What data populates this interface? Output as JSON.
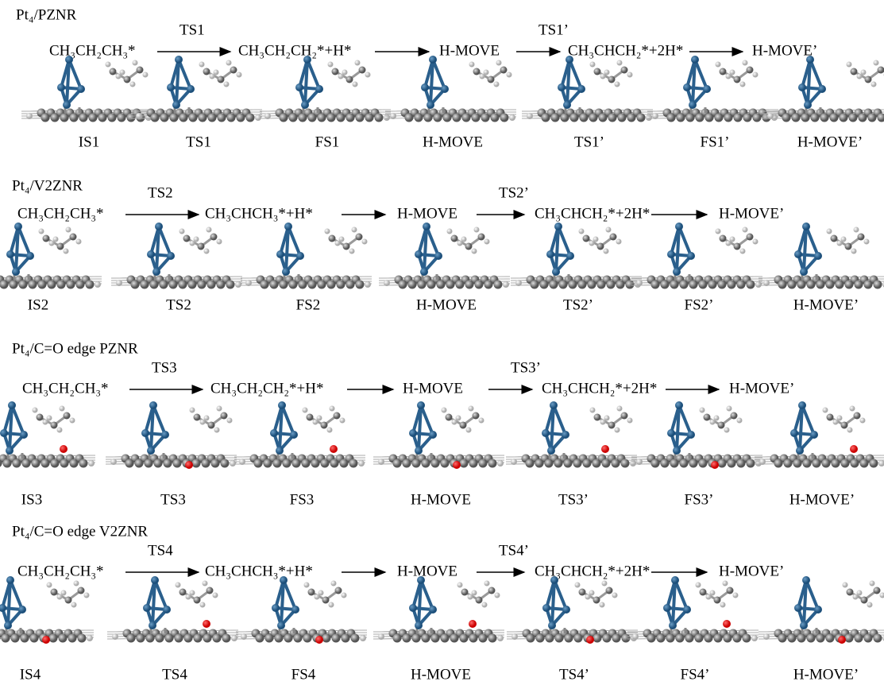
{
  "sections": [
    {
      "label": "Pt₄/PZNR",
      "scheme": [
        "CH₃CH₂CH₃*",
        "CH₃CH₂CH₂*+H*",
        "H-MOVE",
        "CH₃CHCH₂*+2H*",
        "H-MOVE’"
      ],
      "arrows": [
        "TS1",
        null,
        "TS1’",
        null
      ],
      "structures": [
        "IS1",
        "TS1",
        "FS1",
        "H-MOVE",
        "TS1’",
        "FS1’",
        "H-MOVE’"
      ]
    },
    {
      "label": "Pt₄/V2ZNR",
      "scheme": [
        "CH₃CH₂CH₃*",
        "CH₃CHCH₃*+H*",
        "H-MOVE",
        "CH₃CHCH₂*+2H*",
        "H-MOVE’"
      ],
      "arrows": [
        "TS2",
        null,
        "TS2’",
        null
      ],
      "structures": [
        "IS2",
        "TS2",
        "FS2",
        "H-MOVE",
        "TS2’",
        "FS2’",
        "H-MOVE’"
      ]
    },
    {
      "label": "Pt₄/C=O edge PZNR",
      "scheme": [
        "CH₃CH₂CH₃*",
        "CH₃CH₂CH₂*+H*",
        "H-MOVE",
        "CH₃CHCH₂*+2H*",
        "H-MOVE’"
      ],
      "arrows": [
        "TS3",
        null,
        "TS3’",
        null
      ],
      "structures": [
        "IS3",
        "TS3",
        "FS3",
        "H-MOVE",
        "TS3’",
        "FS3’",
        "H-MOVE’"
      ]
    },
    {
      "label": "Pt₄/C=O edge V2ZNR",
      "scheme": [
        "CH₃CH₂CH₃*",
        "CH₃CHCH₃*+H*",
        "H-MOVE",
        "CH₃CHCH₂*+2H*",
        "H-MOVE’"
      ],
      "arrows": [
        "TS4",
        null,
        "TS4’",
        null
      ],
      "structures": [
        "IS4",
        "TS4",
        "FS4",
        "H-MOVE",
        "TS4’",
        "FS4’",
        "H-MOVE’"
      ]
    }
  ]
}
